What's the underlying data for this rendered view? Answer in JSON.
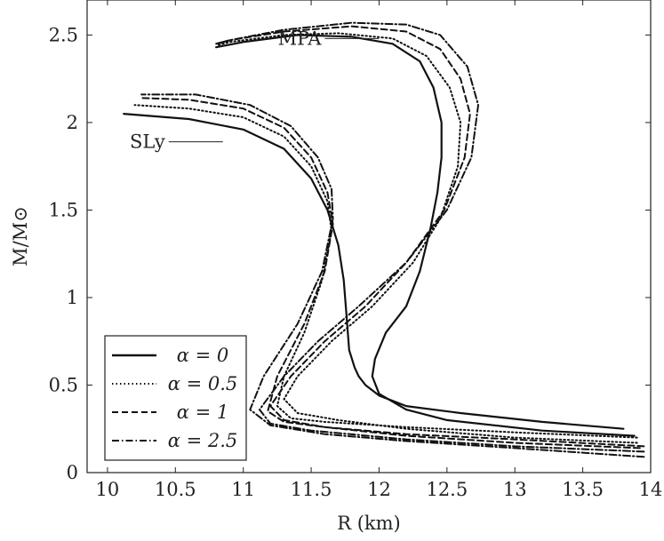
{
  "chart_data": {
    "type": "line",
    "xlabel": "R (km)",
    "ylabel": "M/M⊙",
    "xlim": [
      9.85,
      14
    ],
    "ylim": [
      0,
      2.7
    ],
    "xticks": [
      10,
      10.5,
      11,
      11.5,
      12,
      12.5,
      13,
      13.5,
      14
    ],
    "xtick_labels": [
      "10",
      "10.5",
      "11",
      "11.5",
      "12",
      "12.5",
      "13",
      "13.5",
      "14"
    ],
    "yticks": [
      0,
      0.5,
      1,
      1.5,
      2,
      2.5
    ],
    "ytick_labels": [
      "0",
      "0.5",
      "1",
      "1.5",
      "2",
      "2.5"
    ],
    "grid": false,
    "legend_position": "bottom-left",
    "legend": [
      {
        "label": "α = 0",
        "style": "solid"
      },
      {
        "label": "α = 0.5",
        "style": "dotted"
      },
      {
        "label": "α = 1",
        "style": "dashed"
      },
      {
        "label": "α = 2.5",
        "style": "dashdot"
      }
    ],
    "annotations": [
      {
        "text": "MPA",
        "series": "MPA, α = 0",
        "x": 12.0,
        "y": 2.48
      },
      {
        "text": "SLy",
        "series": "SLy, α = 0",
        "x": 10.85,
        "y": 1.89
      }
    ],
    "series": [
      {
        "eos": "MPA",
        "style": "solid",
        "points": [
          [
            13.88,
            0.21
          ],
          [
            13.2,
            0.24
          ],
          [
            12.5,
            0.3
          ],
          [
            12.2,
            0.36
          ],
          [
            12.0,
            0.45
          ],
          [
            11.95,
            0.55
          ],
          [
            11.97,
            0.65
          ],
          [
            12.05,
            0.8
          ],
          [
            12.2,
            0.95
          ],
          [
            12.3,
            1.15
          ],
          [
            12.38,
            1.4
          ],
          [
            12.43,
            1.6
          ],
          [
            12.46,
            1.8
          ],
          [
            12.46,
            2.0
          ],
          [
            12.4,
            2.2
          ],
          [
            12.3,
            2.35
          ],
          [
            12.1,
            2.45
          ],
          [
            11.8,
            2.49
          ],
          [
            11.4,
            2.5
          ],
          [
            11.0,
            2.46
          ],
          [
            10.8,
            2.43
          ]
        ]
      },
      {
        "eos": "MPA",
        "style": "dotted",
        "points": [
          [
            13.9,
            0.17
          ],
          [
            13.0,
            0.2
          ],
          [
            12.2,
            0.25
          ],
          [
            11.7,
            0.3
          ],
          [
            11.4,
            0.34
          ],
          [
            11.3,
            0.42
          ],
          [
            11.4,
            0.55
          ],
          [
            11.65,
            0.75
          ],
          [
            11.95,
            0.95
          ],
          [
            12.25,
            1.2
          ],
          [
            12.45,
            1.45
          ],
          [
            12.58,
            1.75
          ],
          [
            12.6,
            2.0
          ],
          [
            12.52,
            2.2
          ],
          [
            12.35,
            2.38
          ],
          [
            12.1,
            2.48
          ],
          [
            11.7,
            2.51
          ],
          [
            11.3,
            2.5
          ],
          [
            10.9,
            2.46
          ],
          [
            10.8,
            2.44
          ]
        ]
      },
      {
        "eos": "MPA",
        "style": "dashed",
        "points": [
          [
            13.92,
            0.14
          ],
          [
            13.0,
            0.17
          ],
          [
            12.2,
            0.21
          ],
          [
            11.6,
            0.26
          ],
          [
            11.3,
            0.3
          ],
          [
            11.2,
            0.38
          ],
          [
            11.35,
            0.55
          ],
          [
            11.6,
            0.75
          ],
          [
            11.9,
            0.95
          ],
          [
            12.2,
            1.2
          ],
          [
            12.48,
            1.5
          ],
          [
            12.63,
            1.8
          ],
          [
            12.67,
            2.05
          ],
          [
            12.6,
            2.25
          ],
          [
            12.45,
            2.42
          ],
          [
            12.2,
            2.52
          ],
          [
            11.8,
            2.55
          ],
          [
            11.3,
            2.52
          ],
          [
            10.9,
            2.47
          ],
          [
            10.8,
            2.45
          ]
        ]
      },
      {
        "eos": "MPA",
        "style": "dashdot",
        "points": [
          [
            13.95,
            0.12
          ],
          [
            13.0,
            0.15
          ],
          [
            12.2,
            0.19
          ],
          [
            11.5,
            0.24
          ],
          [
            11.2,
            0.28
          ],
          [
            11.12,
            0.36
          ],
          [
            11.3,
            0.55
          ],
          [
            11.55,
            0.75
          ],
          [
            11.85,
            0.95
          ],
          [
            12.2,
            1.2
          ],
          [
            12.5,
            1.5
          ],
          [
            12.68,
            1.8
          ],
          [
            12.73,
            2.1
          ],
          [
            12.65,
            2.32
          ],
          [
            12.45,
            2.5
          ],
          [
            12.2,
            2.56
          ],
          [
            11.8,
            2.57
          ],
          [
            11.3,
            2.53
          ],
          [
            10.9,
            2.47
          ],
          [
            10.8,
            2.45
          ]
        ]
      },
      {
        "eos": "SLy",
        "style": "solid",
        "points": [
          [
            13.8,
            0.25
          ],
          [
            13.2,
            0.29
          ],
          [
            12.6,
            0.34
          ],
          [
            12.2,
            0.38
          ],
          [
            12.0,
            0.44
          ],
          [
            11.9,
            0.5
          ],
          [
            11.85,
            0.55
          ],
          [
            11.82,
            0.6
          ],
          [
            11.78,
            0.7
          ],
          [
            11.76,
            0.9
          ],
          [
            11.74,
            1.1
          ],
          [
            11.7,
            1.3
          ],
          [
            11.62,
            1.5
          ],
          [
            11.5,
            1.68
          ],
          [
            11.3,
            1.85
          ],
          [
            11.0,
            1.96
          ],
          [
            10.6,
            2.02
          ],
          [
            10.12,
            2.05
          ]
        ]
      },
      {
        "eos": "SLy",
        "style": "dotted",
        "points": [
          [
            13.9,
            0.2
          ],
          [
            13.0,
            0.23
          ],
          [
            12.2,
            0.26
          ],
          [
            11.6,
            0.29
          ],
          [
            11.35,
            0.31
          ],
          [
            11.25,
            0.38
          ],
          [
            11.3,
            0.55
          ],
          [
            11.45,
            0.8
          ],
          [
            11.58,
            1.1
          ],
          [
            11.65,
            1.38
          ],
          [
            11.62,
            1.55
          ],
          [
            11.5,
            1.75
          ],
          [
            11.3,
            1.92
          ],
          [
            11.0,
            2.03
          ],
          [
            10.6,
            2.08
          ],
          [
            10.2,
            2.1
          ]
        ]
      },
      {
        "eos": "SLy",
        "style": "dashed",
        "points": [
          [
            13.95,
            0.15
          ],
          [
            13.0,
            0.19
          ],
          [
            12.2,
            0.22
          ],
          [
            11.6,
            0.26
          ],
          [
            11.3,
            0.29
          ],
          [
            11.18,
            0.35
          ],
          [
            11.25,
            0.55
          ],
          [
            11.45,
            0.85
          ],
          [
            11.6,
            1.15
          ],
          [
            11.66,
            1.42
          ],
          [
            11.62,
            1.6
          ],
          [
            11.5,
            1.8
          ],
          [
            11.3,
            1.97
          ],
          [
            11.0,
            2.08
          ],
          [
            10.6,
            2.13
          ],
          [
            10.25,
            2.14
          ]
        ]
      },
      {
        "eos": "SLy",
        "style": "dashdot",
        "points": [
          [
            13.95,
            0.09
          ],
          [
            13.0,
            0.14
          ],
          [
            12.2,
            0.18
          ],
          [
            11.6,
            0.22
          ],
          [
            11.2,
            0.27
          ],
          [
            11.05,
            0.36
          ],
          [
            11.15,
            0.55
          ],
          [
            11.4,
            0.85
          ],
          [
            11.58,
            1.15
          ],
          [
            11.66,
            1.45
          ],
          [
            11.65,
            1.62
          ],
          [
            11.55,
            1.8
          ],
          [
            11.35,
            1.98
          ],
          [
            11.05,
            2.1
          ],
          [
            10.65,
            2.16
          ],
          [
            10.25,
            2.16
          ]
        ]
      }
    ]
  }
}
